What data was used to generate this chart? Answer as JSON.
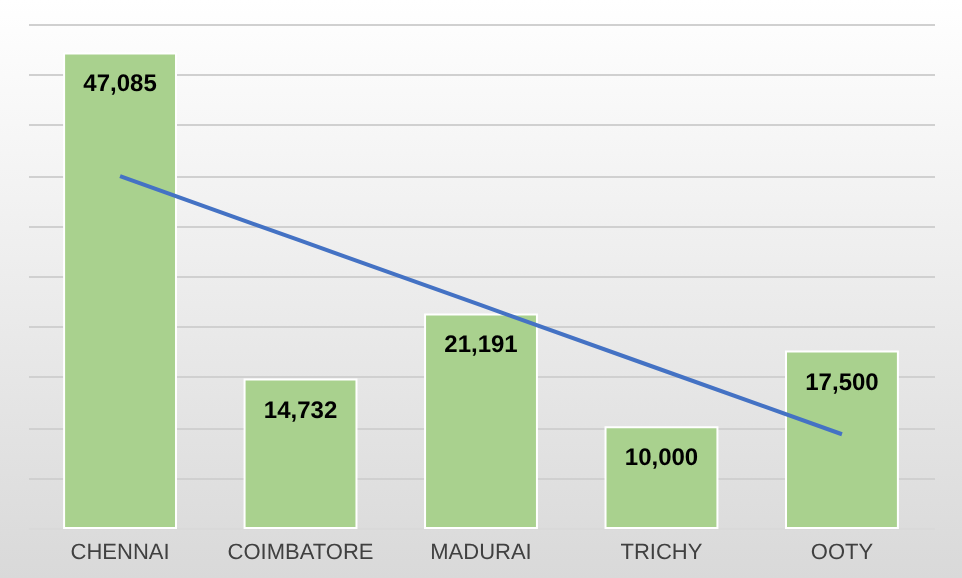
{
  "chart_data": {
    "type": "bar",
    "categories": [
      "CHENNAI",
      "COIMBATORE",
      "MADURAI",
      "TRICHY",
      "OOTY"
    ],
    "series": [
      {
        "color": "#a9d18e",
        "values": [
          47085,
          14732,
          21191,
          10000,
          17500
        ],
        "value_labels": [
          "47,085",
          "14,732",
          "21,191",
          "10,000",
          "17,500"
        ]
      },
      {
        "type": "line",
        "color": "#4472c4",
        "values": [
          34900,
          28500,
          22100,
          15700,
          9300
        ]
      }
    ],
    "ylim": [
      0,
      50000
    ],
    "yticks": [
      {
        "value": 0,
        "label": null
      },
      {
        "value": 5000,
        "label": null
      },
      {
        "value": 10000,
        "label": null
      },
      {
        "value": 15000,
        "label": null
      },
      {
        "value": 20000,
        "label": null
      },
      {
        "value": 25000,
        "label": null
      },
      {
        "value": 30000,
        "label": null
      },
      {
        "value": 35000,
        "label": null
      },
      {
        "value": 40000,
        "label": null
      },
      {
        "value": 45000,
        "label": null
      },
      {
        "value": 50000,
        "label": null
      }
    ],
    "grid": "y",
    "tick_labels": "x",
    "legend": false
  }
}
